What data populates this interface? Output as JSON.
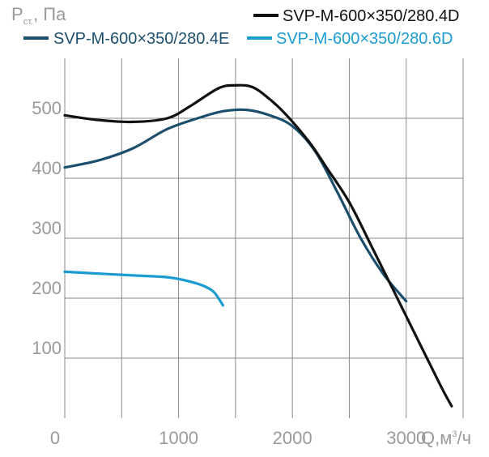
{
  "chart_data": {
    "type": "line",
    "title": "",
    "ylabel_main": "P",
    "ylabel_sub": "ст.",
    "ylabel_unit": ", Па",
    "xlabel_main": "Q,м",
    "xlabel_sup": "3",
    "xlabel_unit": "/ч",
    "xlim": [
      0,
      3500
    ],
    "ylim": [
      0,
      600
    ],
    "x_ticks": [
      0,
      1000,
      2000,
      3000
    ],
    "y_ticks": [
      100,
      200,
      300,
      400,
      500
    ],
    "grid": true,
    "legend_position": "top",
    "series": [
      {
        "name": "SVP-M-600×350/280.4D",
        "color": "#111111",
        "points": [
          [
            0,
            505
          ],
          [
            300,
            497
          ],
          [
            600,
            494
          ],
          [
            900,
            500
          ],
          [
            1100,
            520
          ],
          [
            1350,
            550
          ],
          [
            1500,
            555
          ],
          [
            1650,
            552
          ],
          [
            1800,
            532
          ],
          [
            1950,
            505
          ],
          [
            2150,
            460
          ],
          [
            2300,
            418
          ],
          [
            2500,
            360
          ],
          [
            2700,
            285
          ],
          [
            3000,
            170
          ],
          [
            3300,
            55
          ],
          [
            3400,
            20
          ]
        ]
      },
      {
        "name": "SVP-M-600×350/280.4E",
        "color": "#1c4f6e",
        "points": [
          [
            0,
            418
          ],
          [
            300,
            430
          ],
          [
            600,
            450
          ],
          [
            900,
            482
          ],
          [
            1200,
            502
          ],
          [
            1400,
            512
          ],
          [
            1600,
            514
          ],
          [
            1800,
            505
          ],
          [
            2000,
            487
          ],
          [
            2200,
            445
          ],
          [
            2400,
            375
          ],
          [
            2600,
            300
          ],
          [
            2800,
            240
          ],
          [
            3000,
            195
          ]
        ]
      },
      {
        "name": "SVP-M-600×350/280.6D",
        "color": "#1a9bd1",
        "points": [
          [
            0,
            244
          ],
          [
            300,
            241
          ],
          [
            600,
            238
          ],
          [
            900,
            235
          ],
          [
            1050,
            230
          ],
          [
            1200,
            222
          ],
          [
            1300,
            212
          ],
          [
            1350,
            200
          ],
          [
            1390,
            188
          ]
        ]
      }
    ]
  }
}
